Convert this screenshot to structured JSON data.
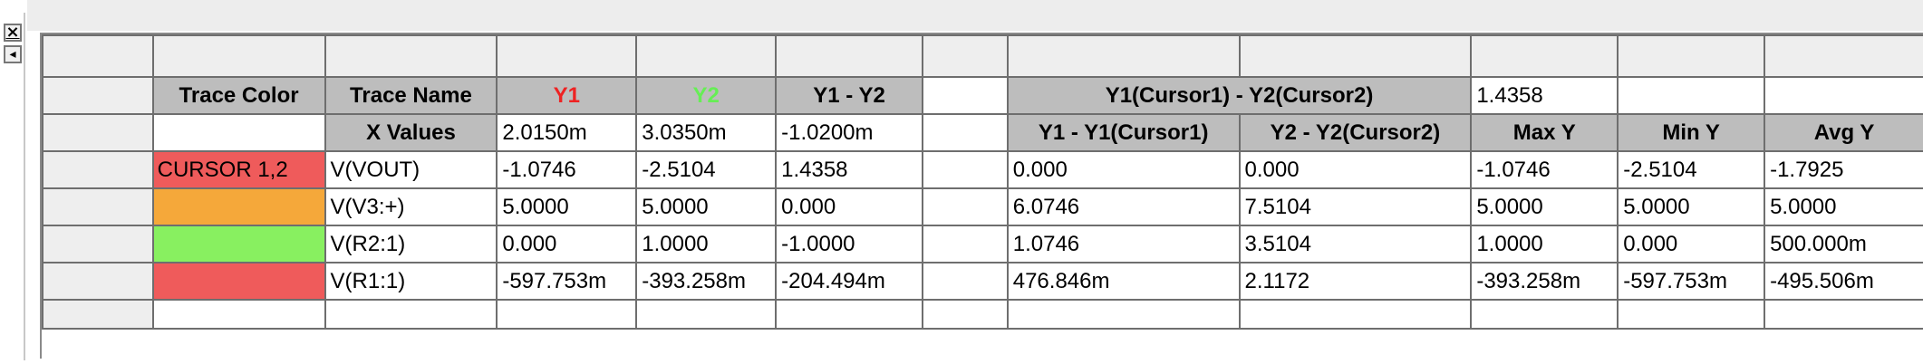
{
  "controls": {
    "close_glyph": "×",
    "arrow_glyph": "◂"
  },
  "header": {
    "trace_color": "Trace Color",
    "trace_name": "Trace Name",
    "y1": "Y1",
    "y2": "Y2",
    "y1_minus_y2": "Y1 - Y2",
    "cursor_diff_label": "Y1(Cursor1) - Y2(Cursor2)",
    "cursor_diff_value": "1.4358",
    "y1_color": "#ee2222",
    "y2_color": "#66ee55"
  },
  "xrow": {
    "label": "X Values",
    "x1": "2.0150m",
    "x2": "3.0350m",
    "dx": "-1.0200m",
    "col_y1c": "Y1 - Y1(Cursor1)",
    "col_y2c": "Y2 - Y2(Cursor2)",
    "col_max": "Max Y",
    "col_min": "Min Y",
    "col_avg": "Avg Y"
  },
  "traces": [
    {
      "color": "#ef5b5b",
      "swatch_label": "CURSOR 1,2",
      "name": "V(VOUT)",
      "y1": "-1.0746",
      "y2": "-2.5104",
      "d": "1.4358",
      "dy1": "0.000",
      "dy2": "0.000",
      "max": "-1.0746",
      "min": "-2.5104",
      "avg": "-1.7925"
    },
    {
      "color": "#f5a83a",
      "swatch_label": "",
      "name": "V(V3:+)",
      "y1": "5.0000",
      "y2": "5.0000",
      "d": "0.000",
      "dy1": "6.0746",
      "dy2": "7.5104",
      "max": "5.0000",
      "min": "5.0000",
      "avg": "5.0000"
    },
    {
      "color": "#88f060",
      "swatch_label": "",
      "name": "V(R2:1)",
      "y1": "0.000",
      "y2": "1.0000",
      "d": "-1.0000",
      "dy1": "1.0746",
      "dy2": "3.5104",
      "max": "1.0000",
      "min": "0.000",
      "avg": "500.000m"
    },
    {
      "color": "#ef5b5b",
      "swatch_label": "",
      "name": "V(R1:1)",
      "y1": "-597.753m",
      "y2": "-393.258m",
      "d": "-204.494m",
      "dy1": "476.846m",
      "dy2": "2.1172",
      "max": "-393.258m",
      "min": "-597.753m",
      "avg": "-495.506m"
    }
  ]
}
